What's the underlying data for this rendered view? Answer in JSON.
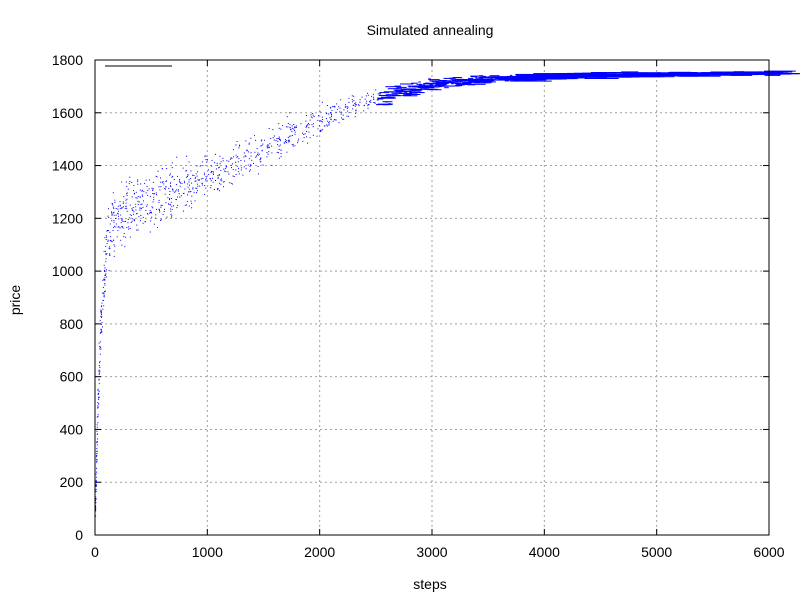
{
  "chart_data": {
    "type": "scatter",
    "title": "Simulated annealing",
    "xlabel": "steps",
    "ylabel": "price",
    "xlim": [
      0,
      6000
    ],
    "ylim": [
      0,
      1800
    ],
    "x_ticks": [
      0,
      1000,
      2000,
      3000,
      4000,
      5000,
      6000
    ],
    "y_ticks": [
      0,
      200,
      400,
      600,
      800,
      1000,
      1200,
      1400,
      1600,
      1800
    ],
    "grid": true,
    "legend": {
      "position": "top-left",
      "entries": [
        {
          "label": "",
          "color": "#000000"
        }
      ]
    },
    "series": [
      {
        "color": "#0000ff",
        "style": "dense noisy points, spread narrowing as steps increase",
        "x": [
          0,
          20,
          50,
          100,
          150,
          200,
          300,
          400,
          500,
          600,
          700,
          800,
          900,
          1000,
          1200,
          1400,
          1600,
          1800,
          2000,
          2200,
          2400,
          2600,
          2800,
          3000,
          3500,
          4000,
          4500,
          5000,
          5500,
          6000
        ],
        "y": [
          100,
          450,
          800,
          1100,
          1180,
          1200,
          1240,
          1260,
          1270,
          1290,
          1300,
          1320,
          1340,
          1360,
          1400,
          1440,
          1490,
          1530,
          1570,
          1610,
          1640,
          1670,
          1690,
          1710,
          1730,
          1740,
          1745,
          1748,
          1750,
          1752
        ],
        "spread": [
          50,
          150,
          150,
          180,
          180,
          180,
          170,
          160,
          150,
          150,
          140,
          140,
          130,
          130,
          120,
          110,
          100,
          90,
          80,
          60,
          50,
          40,
          35,
          30,
          20,
          15,
          15,
          10,
          10,
          10
        ]
      }
    ]
  }
}
